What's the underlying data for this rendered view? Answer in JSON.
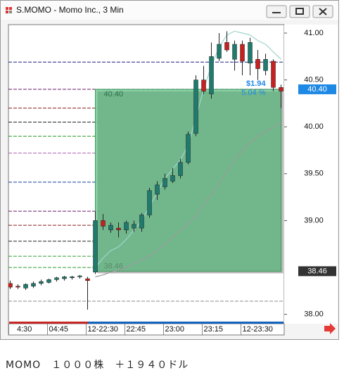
{
  "chart_data": {
    "type": "candlestick",
    "title": "S.MOMO - Momo Inc., 3 Min",
    "categories": [
      "4:30",
      null,
      null,
      null,
      null,
      "04:45",
      null,
      null,
      null,
      null,
      "12-22:30",
      null,
      null,
      null,
      null,
      "22:45",
      null,
      null,
      null,
      null,
      "23:00",
      null,
      null,
      null,
      null,
      "23:15",
      null,
      null,
      null,
      null,
      "12-23:30",
      null,
      null,
      null,
      null,
      null
    ],
    "open": [
      38.33,
      38.3,
      38.28,
      38.3,
      38.33,
      38.34,
      38.37,
      38.38,
      38.39,
      38.4,
      38.38,
      38.45,
      39.0,
      38.9,
      38.92,
      38.9,
      38.92,
      38.92,
      39.06,
      39.28,
      39.36,
      39.42,
      39.48,
      39.62,
      39.93,
      40.5,
      40.35,
      40.73,
      40.9,
      40.72,
      40.88,
      40.68,
      40.72,
      40.6,
      40.7,
      40.42
    ],
    "high": [
      38.36,
      38.32,
      38.33,
      38.35,
      38.37,
      38.38,
      38.4,
      38.41,
      38.41,
      38.42,
      38.4,
      39.1,
      39.07,
      38.98,
      38.98,
      39.0,
      39.0,
      39.08,
      39.35,
      39.42,
      39.5,
      39.56,
      39.66,
      39.95,
      40.55,
      40.65,
      40.9,
      41.0,
      41.02,
      40.92,
      40.92,
      40.95,
      40.82,
      40.78,
      40.72,
      40.45
    ],
    "low": [
      38.27,
      38.27,
      38.26,
      38.28,
      38.31,
      38.33,
      38.35,
      38.36,
      38.37,
      38.38,
      38.05,
      38.43,
      38.9,
      38.87,
      38.82,
      38.86,
      38.88,
      38.88,
      39.03,
      39.22,
      39.33,
      39.4,
      39.45,
      39.6,
      39.9,
      40.35,
      40.3,
      40.7,
      40.8,
      40.6,
      40.55,
      40.55,
      40.5,
      40.55,
      40.38,
      40.2
    ],
    "close": [
      38.29,
      38.29,
      38.32,
      38.33,
      38.35,
      38.37,
      38.39,
      38.4,
      38.4,
      38.41,
      38.36,
      39.0,
      38.94,
      38.95,
      38.9,
      38.98,
      38.96,
      39.06,
      39.32,
      39.38,
      39.45,
      39.48,
      39.62,
      39.92,
      40.5,
      40.38,
      40.75,
      40.88,
      40.82,
      40.88,
      40.7,
      40.9,
      40.62,
      40.72,
      40.42,
      40.38
    ],
    "up_color": "#1e7b6e",
    "down_color": "#c8201e",
    "overlays": [
      {
        "color": "#9a9a9a",
        "values": [
          null,
          null,
          null,
          null,
          null,
          null,
          null,
          null,
          null,
          null,
          null,
          38.4,
          38.42,
          38.45,
          38.47,
          38.5,
          38.54,
          38.58,
          38.62,
          38.68,
          38.75,
          38.82,
          38.9,
          38.97,
          39.05,
          39.17,
          39.28,
          39.4,
          39.52,
          39.64,
          39.75,
          39.83,
          39.9,
          39.95,
          40.0,
          40.05
        ]
      },
      {
        "color": "#9fd4cc",
        "values": [
          null,
          null,
          null,
          null,
          null,
          null,
          null,
          null,
          null,
          null,
          null,
          38.5,
          38.6,
          38.68,
          38.72,
          38.8,
          38.9,
          39.0,
          39.15,
          39.3,
          39.45,
          39.55,
          39.65,
          39.8,
          40.1,
          40.4,
          40.65,
          40.85,
          40.98,
          41.02,
          41.0,
          40.98,
          40.92,
          40.88,
          40.8,
          40.72
        ]
      }
    ],
    "levels": [
      {
        "value": 40.69,
        "color": "#1a237e"
      },
      {
        "value": 40.4,
        "color": "#6a1b6a"
      },
      {
        "value": 40.2,
        "color": "#8b1a1a"
      },
      {
        "value": 40.05,
        "color": "#222222"
      },
      {
        "value": 39.9,
        "color": "#2e9e2e"
      },
      {
        "value": 39.72,
        "color": "#b060b0"
      },
      {
        "value": 39.41,
        "color": "#1a3fa0"
      },
      {
        "value": 39.1,
        "color": "#6a1b6a"
      },
      {
        "value": 38.95,
        "color": "#8b1a1a"
      },
      {
        "value": 38.78,
        "color": "#222222"
      },
      {
        "value": 38.62,
        "color": "#2e9e2e"
      },
      {
        "value": 38.5,
        "color": "#2e9e2e"
      },
      {
        "value": 38.14,
        "color": "#888888"
      }
    ],
    "measure": {
      "from_bar": 11,
      "to_bar": 35,
      "top": 40.4,
      "bottom": 38.46,
      "top_label": "40.40",
      "bottom_label": "38.46",
      "change_label": "$1.94",
      "percent_label": "5.04 %",
      "color": "#4fb877"
    },
    "price_markers": [
      {
        "value": 40.4,
        "label": "40.40",
        "color": "#1e88e5"
      },
      {
        "value": 38.46,
        "label": "38.46",
        "color": "#333333"
      }
    ],
    "ylim": [
      37.9,
      41.09
    ],
    "yticks": [
      {
        "value": 38,
        "label": "38.00"
      },
      {
        "value": 39,
        "label": "39.00"
      },
      {
        "value": 39.5,
        "label": "39.50"
      },
      {
        "value": 40,
        "label": "40.00"
      },
      {
        "value": 40.5,
        "label": "40.50"
      },
      {
        "value": 41,
        "label": "41.00"
      }
    ]
  },
  "caption": "MOMO　１０００株　＋１９４０ドル"
}
